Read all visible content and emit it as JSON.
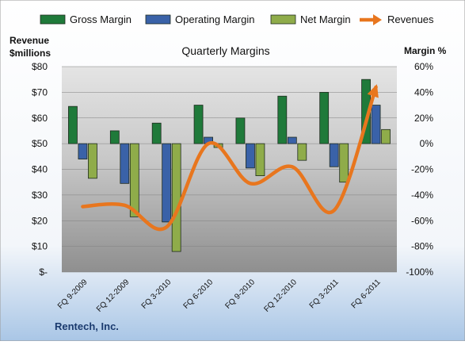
{
  "chart_data": {
    "type": "bar",
    "title": "Quarterly Margins",
    "footer": "Rentech, Inc.",
    "left_axis_label": [
      "Revenue",
      "$millions"
    ],
    "right_axis_label": "Margin %",
    "categories": [
      "FQ 9-2009",
      "FQ 12-2009",
      "FQ 3-2010",
      "FQ 6-2010",
      "FQ 9-2010",
      "FQ 12-2010",
      "FQ 3-2011",
      "FQ 6-2011"
    ],
    "left_ticks": [
      "$-",
      "$10",
      "$20",
      "$30",
      "$40",
      "$50",
      "$60",
      "$70",
      "$80"
    ],
    "right_ticks": [
      "-100%",
      "-80%",
      "-60%",
      "-40%",
      "-20%",
      "0%",
      "20%",
      "40%",
      "60%"
    ],
    "ylim_left": [
      0,
      80
    ],
    "ylim_right": [
      -100,
      60
    ],
    "legend_position": "top",
    "grid": true,
    "series": [
      {
        "name": "Gross Margin",
        "axis": "right",
        "kind": "bar",
        "color": "#1f7a3a",
        "values": [
          29,
          10,
          16,
          30,
          20,
          37,
          40,
          50
        ]
      },
      {
        "name": "Operating Margin",
        "axis": "right",
        "kind": "bar",
        "color": "#3a62a8",
        "values": [
          -12,
          -31,
          -61,
          5,
          -19,
          5,
          -18,
          30
        ]
      },
      {
        "name": "Net Margin",
        "axis": "right",
        "kind": "bar",
        "color": "#8fac4a",
        "values": [
          -27,
          -57,
          -84,
          -3,
          -25,
          -13,
          -30,
          11
        ]
      },
      {
        "name": "Revenues",
        "axis": "left",
        "kind": "line",
        "color": "#e8761e",
        "values": [
          25.5,
          26,
          17.5,
          50,
          34.5,
          41,
          24,
          72
        ]
      }
    ]
  }
}
